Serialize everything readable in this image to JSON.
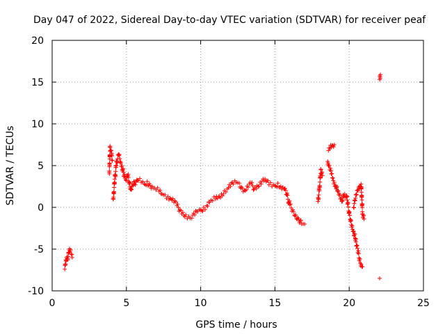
{
  "chart_data": {
    "type": "scatter",
    "title": "Day 047 of 2022, Sidereal Day-to-day VTEC variation (SDTVAR) for receiver peaf",
    "xlabel": "GPS time / hours",
    "ylabel": "SDTVAR / TECUs",
    "xlim": [
      0,
      25
    ],
    "ylim": [
      -10,
      20
    ],
    "xticks": [
      "0",
      "5",
      "10",
      "15",
      "20",
      "25"
    ],
    "yticks": [
      "-10",
      "-5",
      "0",
      "5",
      "10",
      "15",
      "20"
    ],
    "grid": true,
    "marker": "plus",
    "color": "#ff0000",
    "series": [
      {
        "name": "SDTVAR",
        "trace": [
          [
            0.85,
            -7.4
          ],
          [
            0.9,
            -6.8
          ],
          [
            0.95,
            -6.3
          ],
          [
            1.0,
            -5.9
          ],
          [
            1.05,
            -6.1
          ],
          [
            1.1,
            -5.5
          ],
          [
            1.15,
            -5.1
          ],
          [
            1.2,
            -5.3
          ],
          [
            1.3,
            -5.6
          ],
          [
            1.35,
            -6.0
          ],
          [
            3.85,
            4.2
          ],
          [
            3.9,
            7.2
          ],
          [
            3.95,
            6.8
          ],
          [
            4.0,
            6.3
          ],
          [
            4.05,
            5.6
          ],
          [
            4.1,
            1.0
          ],
          [
            4.15,
            1.8
          ],
          [
            4.2,
            3.0
          ],
          [
            4.3,
            4.8
          ],
          [
            4.4,
            5.8
          ],
          [
            4.5,
            6.2
          ],
          [
            4.6,
            5.5
          ],
          [
            4.7,
            5.0
          ],
          [
            4.8,
            4.2
          ],
          [
            4.9,
            3.5
          ],
          [
            5.0,
            3.2
          ],
          [
            5.1,
            3.8
          ],
          [
            5.2,
            3.0
          ],
          [
            5.3,
            2.2
          ],
          [
            5.4,
            2.8
          ],
          [
            5.5,
            3.1
          ],
          [
            5.6,
            2.7
          ],
          [
            5.8,
            3.2
          ],
          [
            6.0,
            3.0
          ],
          [
            6.2,
            2.8
          ],
          [
            6.4,
            3.1
          ],
          [
            6.6,
            2.6
          ],
          [
            6.8,
            2.3
          ],
          [
            7.0,
            2.1
          ],
          [
            7.2,
            1.9
          ],
          [
            7.4,
            1.6
          ],
          [
            7.6,
            1.5
          ],
          [
            7.8,
            1.3
          ],
          [
            8.0,
            1.0
          ],
          [
            8.2,
            0.6
          ],
          [
            8.4,
            0.2
          ],
          [
            8.6,
            -0.3
          ],
          [
            8.8,
            -0.6
          ],
          [
            9.0,
            -0.9
          ],
          [
            9.2,
            -1.1
          ],
          [
            9.4,
            -1.3
          ],
          [
            9.6,
            -0.9
          ],
          [
            9.8,
            -0.5
          ],
          [
            10.0,
            -0.3
          ],
          [
            10.2,
            0.0
          ],
          [
            10.4,
            0.2
          ],
          [
            10.6,
            0.6
          ],
          [
            10.8,
            0.8
          ],
          [
            11.0,
            1.0
          ],
          [
            11.2,
            1.3
          ],
          [
            11.4,
            1.6
          ],
          [
            11.6,
            2.0
          ],
          [
            11.8,
            2.2
          ],
          [
            12.0,
            2.5
          ],
          [
            12.2,
            2.8
          ],
          [
            12.4,
            3.0
          ],
          [
            12.6,
            2.9
          ],
          [
            12.8,
            2.3
          ],
          [
            13.0,
            2.0
          ],
          [
            13.2,
            2.4
          ],
          [
            13.4,
            2.8
          ],
          [
            13.6,
            2.2
          ],
          [
            13.8,
            2.6
          ],
          [
            14.0,
            3.0
          ],
          [
            14.2,
            3.4
          ],
          [
            14.4,
            3.1
          ],
          [
            14.6,
            2.7
          ],
          [
            14.8,
            2.5
          ],
          [
            15.0,
            2.6
          ],
          [
            15.2,
            2.9
          ],
          [
            15.4,
            2.5
          ],
          [
            15.6,
            2.2
          ],
          [
            15.8,
            1.5
          ],
          [
            16.0,
            0.3
          ],
          [
            16.2,
            -0.3
          ],
          [
            16.4,
            -0.9
          ],
          [
            16.6,
            -1.4
          ],
          [
            16.8,
            -2.0
          ],
          [
            17.0,
            -2.0
          ],
          [
            17.9,
            0.7
          ],
          [
            18.0,
            2.4
          ],
          [
            18.05,
            3.6
          ],
          [
            18.1,
            4.5
          ],
          [
            18.2,
            3.8
          ],
          [
            18.6,
            6.8
          ],
          [
            18.7,
            7.0
          ],
          [
            18.8,
            7.2
          ],
          [
            18.9,
            7.4
          ],
          [
            19.0,
            7.5
          ],
          [
            18.55,
            5.5
          ],
          [
            18.6,
            5.0
          ],
          [
            18.7,
            4.5
          ],
          [
            18.8,
            4.0
          ],
          [
            18.9,
            3.5
          ],
          [
            19.0,
            3.0
          ],
          [
            19.1,
            2.6
          ],
          [
            19.2,
            2.0
          ],
          [
            19.3,
            1.5
          ],
          [
            19.4,
            1.0
          ],
          [
            19.5,
            0.7
          ],
          [
            19.6,
            1.5
          ],
          [
            19.7,
            1.6
          ],
          [
            19.8,
            1.4
          ],
          [
            19.9,
            0.5
          ],
          [
            20.0,
            -0.7
          ],
          [
            20.1,
            -1.5
          ],
          [
            20.2,
            -2.2
          ],
          [
            20.3,
            -2.9
          ],
          [
            20.4,
            -3.7
          ],
          [
            20.5,
            -4.6
          ],
          [
            20.6,
            -5.4
          ],
          [
            20.7,
            -6.2
          ],
          [
            20.8,
            -6.8
          ],
          [
            20.9,
            -7.1
          ],
          [
            20.3,
            0.0
          ],
          [
            20.4,
            0.8
          ],
          [
            20.5,
            1.5
          ],
          [
            20.6,
            2.0
          ],
          [
            20.7,
            2.5
          ],
          [
            20.8,
            2.8
          ],
          [
            20.9,
            -0.8
          ],
          [
            21.0,
            -1.4
          ],
          [
            22.05,
            -8.5
          ],
          [
            22.05,
            15.3
          ],
          [
            22.1,
            15.9
          ]
        ]
      }
    ]
  }
}
